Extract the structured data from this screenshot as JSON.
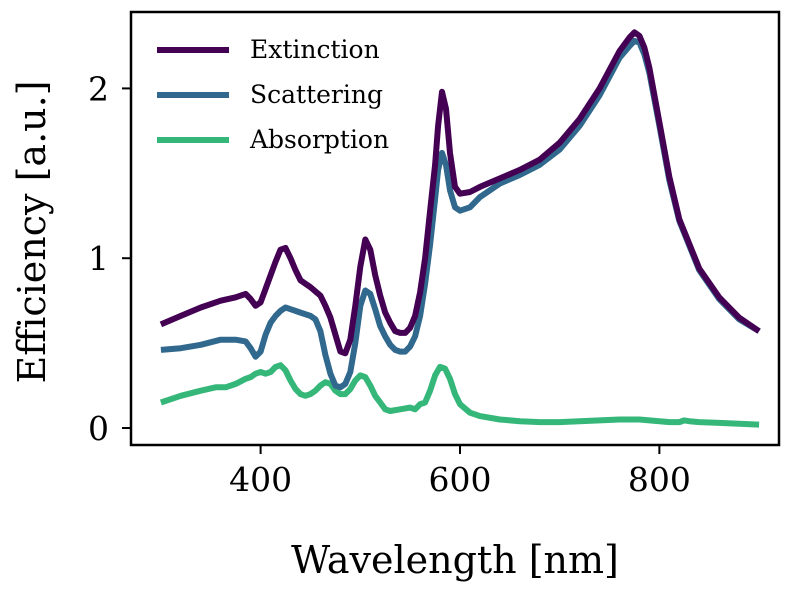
{
  "chart_data": {
    "type": "line",
    "title": "",
    "xlabel": "Wavelength [nm]",
    "ylabel": "Efficiency [a.u.]",
    "xlim": [
      270,
      920
    ],
    "ylim": [
      -0.1,
      2.45
    ],
    "xticks": [
      400,
      600,
      800
    ],
    "xtick_labels": [
      "400",
      "600",
      "800"
    ],
    "yticks": [
      0,
      1,
      2
    ],
    "ytick_labels": [
      "0",
      "1",
      "2"
    ],
    "grid": false,
    "legend_position": "top-left",
    "series": [
      {
        "name": "Extinction",
        "color": "#440154",
        "x": [
          300,
          320,
          340,
          360,
          375,
          385,
          390,
          395,
          400,
          405,
          410,
          415,
          420,
          425,
          430,
          435,
          440,
          450,
          460,
          465,
          470,
          475,
          480,
          485,
          490,
          495,
          500,
          505,
          510,
          515,
          520,
          525,
          530,
          535,
          540,
          545,
          550,
          555,
          560,
          565,
          570,
          575,
          578,
          582,
          586,
          590,
          595,
          600,
          610,
          620,
          640,
          660,
          680,
          700,
          720,
          740,
          760,
          770,
          775,
          780,
          785,
          790,
          800,
          810,
          820,
          840,
          860,
          880,
          900
        ],
        "values": [
          0.61,
          0.66,
          0.71,
          0.75,
          0.77,
          0.79,
          0.76,
          0.72,
          0.74,
          0.82,
          0.9,
          0.98,
          1.05,
          1.06,
          1.0,
          0.93,
          0.87,
          0.83,
          0.78,
          0.72,
          0.65,
          0.55,
          0.45,
          0.44,
          0.52,
          0.72,
          0.95,
          1.11,
          1.05,
          0.9,
          0.78,
          0.68,
          0.62,
          0.57,
          0.56,
          0.56,
          0.59,
          0.66,
          0.8,
          1.0,
          1.28,
          1.55,
          1.78,
          1.98,
          1.88,
          1.62,
          1.42,
          1.38,
          1.39,
          1.42,
          1.47,
          1.52,
          1.58,
          1.68,
          1.82,
          2.0,
          2.22,
          2.3,
          2.33,
          2.31,
          2.24,
          2.12,
          1.8,
          1.48,
          1.23,
          0.94,
          0.77,
          0.65,
          0.57
        ]
      },
      {
        "name": "Scattering",
        "color": "#31688e",
        "x": [
          300,
          320,
          340,
          360,
          375,
          385,
          390,
          395,
          400,
          405,
          410,
          415,
          420,
          425,
          430,
          435,
          440,
          450,
          455,
          460,
          465,
          470,
          475,
          480,
          485,
          490,
          495,
          500,
          505,
          510,
          515,
          520,
          525,
          530,
          535,
          540,
          545,
          550,
          555,
          560,
          565,
          570,
          575,
          578,
          582,
          586,
          590,
          595,
          600,
          610,
          620,
          640,
          660,
          680,
          700,
          720,
          740,
          760,
          770,
          775,
          780,
          785,
          790,
          800,
          810,
          820,
          840,
          860,
          880,
          900
        ],
        "values": [
          0.46,
          0.47,
          0.49,
          0.52,
          0.52,
          0.51,
          0.47,
          0.42,
          0.45,
          0.55,
          0.62,
          0.66,
          0.69,
          0.71,
          0.7,
          0.69,
          0.68,
          0.66,
          0.64,
          0.57,
          0.43,
          0.32,
          0.25,
          0.24,
          0.26,
          0.33,
          0.5,
          0.72,
          0.81,
          0.79,
          0.7,
          0.6,
          0.54,
          0.49,
          0.46,
          0.45,
          0.45,
          0.48,
          0.54,
          0.66,
          0.85,
          1.08,
          1.35,
          1.52,
          1.62,
          1.55,
          1.4,
          1.3,
          1.28,
          1.3,
          1.36,
          1.44,
          1.49,
          1.55,
          1.64,
          1.78,
          1.96,
          2.18,
          2.25,
          2.28,
          2.27,
          2.2,
          2.09,
          1.78,
          1.46,
          1.22,
          0.93,
          0.76,
          0.64,
          0.57
        ]
      },
      {
        "name": "Absorption",
        "color": "#35b779",
        "x": [
          300,
          320,
          340,
          355,
          365,
          375,
          385,
          390,
          395,
          400,
          405,
          410,
          415,
          420,
          425,
          430,
          435,
          440,
          445,
          450,
          455,
          460,
          465,
          470,
          475,
          480,
          485,
          490,
          495,
          500,
          505,
          510,
          515,
          520,
          525,
          530,
          540,
          550,
          555,
          560,
          565,
          570,
          575,
          580,
          585,
          590,
          595,
          600,
          610,
          620,
          640,
          660,
          680,
          700,
          720,
          740,
          760,
          780,
          800,
          810,
          820,
          825,
          830,
          840,
          860,
          880,
          900
        ],
        "values": [
          0.15,
          0.19,
          0.22,
          0.24,
          0.24,
          0.26,
          0.29,
          0.3,
          0.32,
          0.33,
          0.32,
          0.33,
          0.36,
          0.37,
          0.34,
          0.28,
          0.23,
          0.2,
          0.19,
          0.2,
          0.22,
          0.25,
          0.27,
          0.26,
          0.22,
          0.2,
          0.2,
          0.23,
          0.28,
          0.31,
          0.3,
          0.25,
          0.19,
          0.15,
          0.11,
          0.1,
          0.11,
          0.12,
          0.11,
          0.14,
          0.15,
          0.22,
          0.31,
          0.36,
          0.35,
          0.29,
          0.2,
          0.14,
          0.09,
          0.07,
          0.05,
          0.04,
          0.035,
          0.035,
          0.04,
          0.045,
          0.05,
          0.05,
          0.04,
          0.035,
          0.035,
          0.045,
          0.04,
          0.035,
          0.03,
          0.025,
          0.02
        ]
      }
    ]
  }
}
